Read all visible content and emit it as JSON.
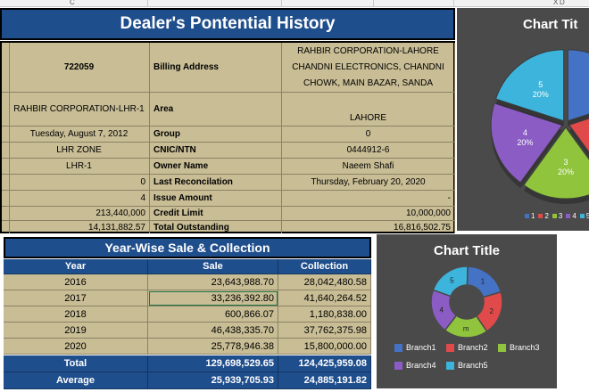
{
  "sheet": {
    "col_headers": [
      "C",
      "",
      "",
      "",
      "",
      "",
      "X",
      "D"
    ]
  },
  "dealer": {
    "title": "Dealer's Pontential History",
    "code": "722059",
    "name": "RAHBIR CORPORATION-LHR-1",
    "date": "Tuesday, August 7, 2012",
    "zone": "LHR ZONE",
    "sub_zone": "LHR-1",
    "value_0": "0",
    "value_4": "4",
    "value_213": "213,440,000",
    "value_14": "14,131,882.57",
    "labels": {
      "billing_address": "Billing Address",
      "area": "Area",
      "group": "Group",
      "cnic": "CNIC/NTN",
      "owner": "Owner Name",
      "last_recon": "Last Reconcilation",
      "issue_amount": "Issue Amount",
      "credit_limit": "Credit Limit",
      "total_outstanding": "Total Outstanding"
    },
    "values": {
      "billing_address": "RAHBIR CORPORATION-LAHORE CHANDNI ELECTRONICS, CHANDNI CHOWK, MAIN BAZAR, SANDA",
      "area": "LAHORE",
      "group": "0",
      "cnic": "0444912-6",
      "owner": "Naeem Shafi",
      "last_recon": "Thursday, February 20, 2020",
      "issue_amount": "-",
      "credit_limit": "10,000,000",
      "total_outstanding": "16,816,502.75"
    }
  },
  "yearwise": {
    "title": "Year-Wise Sale & Collection",
    "headers": [
      "Year",
      "Sale",
      "Collection"
    ],
    "rows": [
      {
        "year": "2016",
        "sale": "23,643,988.70",
        "collection": "28,042,480.58"
      },
      {
        "year": "2017",
        "sale": "33,236,392.80",
        "collection": "41,640,264.52"
      },
      {
        "year": "2018",
        "sale": "600,866.07",
        "collection": "1,180,838.00"
      },
      {
        "year": "2019",
        "sale": "46,438,335.70",
        "collection": "37,762,375.98"
      },
      {
        "year": "2020",
        "sale": "25,778,946.38",
        "collection": "15,800,000.00"
      }
    ],
    "total": {
      "label": "Total",
      "sale": "129,698,529.65",
      "collection": "124,425,959.08"
    },
    "average": {
      "label": "Average",
      "sale": "25,939,705.93",
      "collection": "24,885,191.82"
    }
  },
  "chart_data": [
    {
      "type": "pie",
      "title": "Chart Tit",
      "categories": [
        "1",
        "2",
        "3",
        "4",
        "5"
      ],
      "values": [
        20,
        20,
        20,
        20,
        20
      ],
      "data_labels": [
        {
          "category": "5",
          "pct": "20%"
        },
        {
          "category": "4",
          "pct": "20%"
        },
        {
          "category": "3",
          "pct": "20%"
        }
      ],
      "colors": [
        "#4472c4",
        "#e04a4a",
        "#8fc43c",
        "#8a5cc4",
        "#3cb4dc"
      ],
      "legend": "bottom"
    },
    {
      "type": "pie",
      "title": "Chart Title",
      "categories": [
        "Branch1",
        "Branch2",
        "Branch3",
        "Branch4",
        "Branch5"
      ],
      "values": [
        20,
        20,
        20,
        20,
        20
      ],
      "segment_labels": [
        "5",
        "1",
        "2",
        "m",
        "4"
      ],
      "colors": [
        "#4472c4",
        "#e04a4a",
        "#8fc43c",
        "#8a5cc4",
        "#3cb4dc"
      ],
      "legend": "bottom"
    }
  ]
}
